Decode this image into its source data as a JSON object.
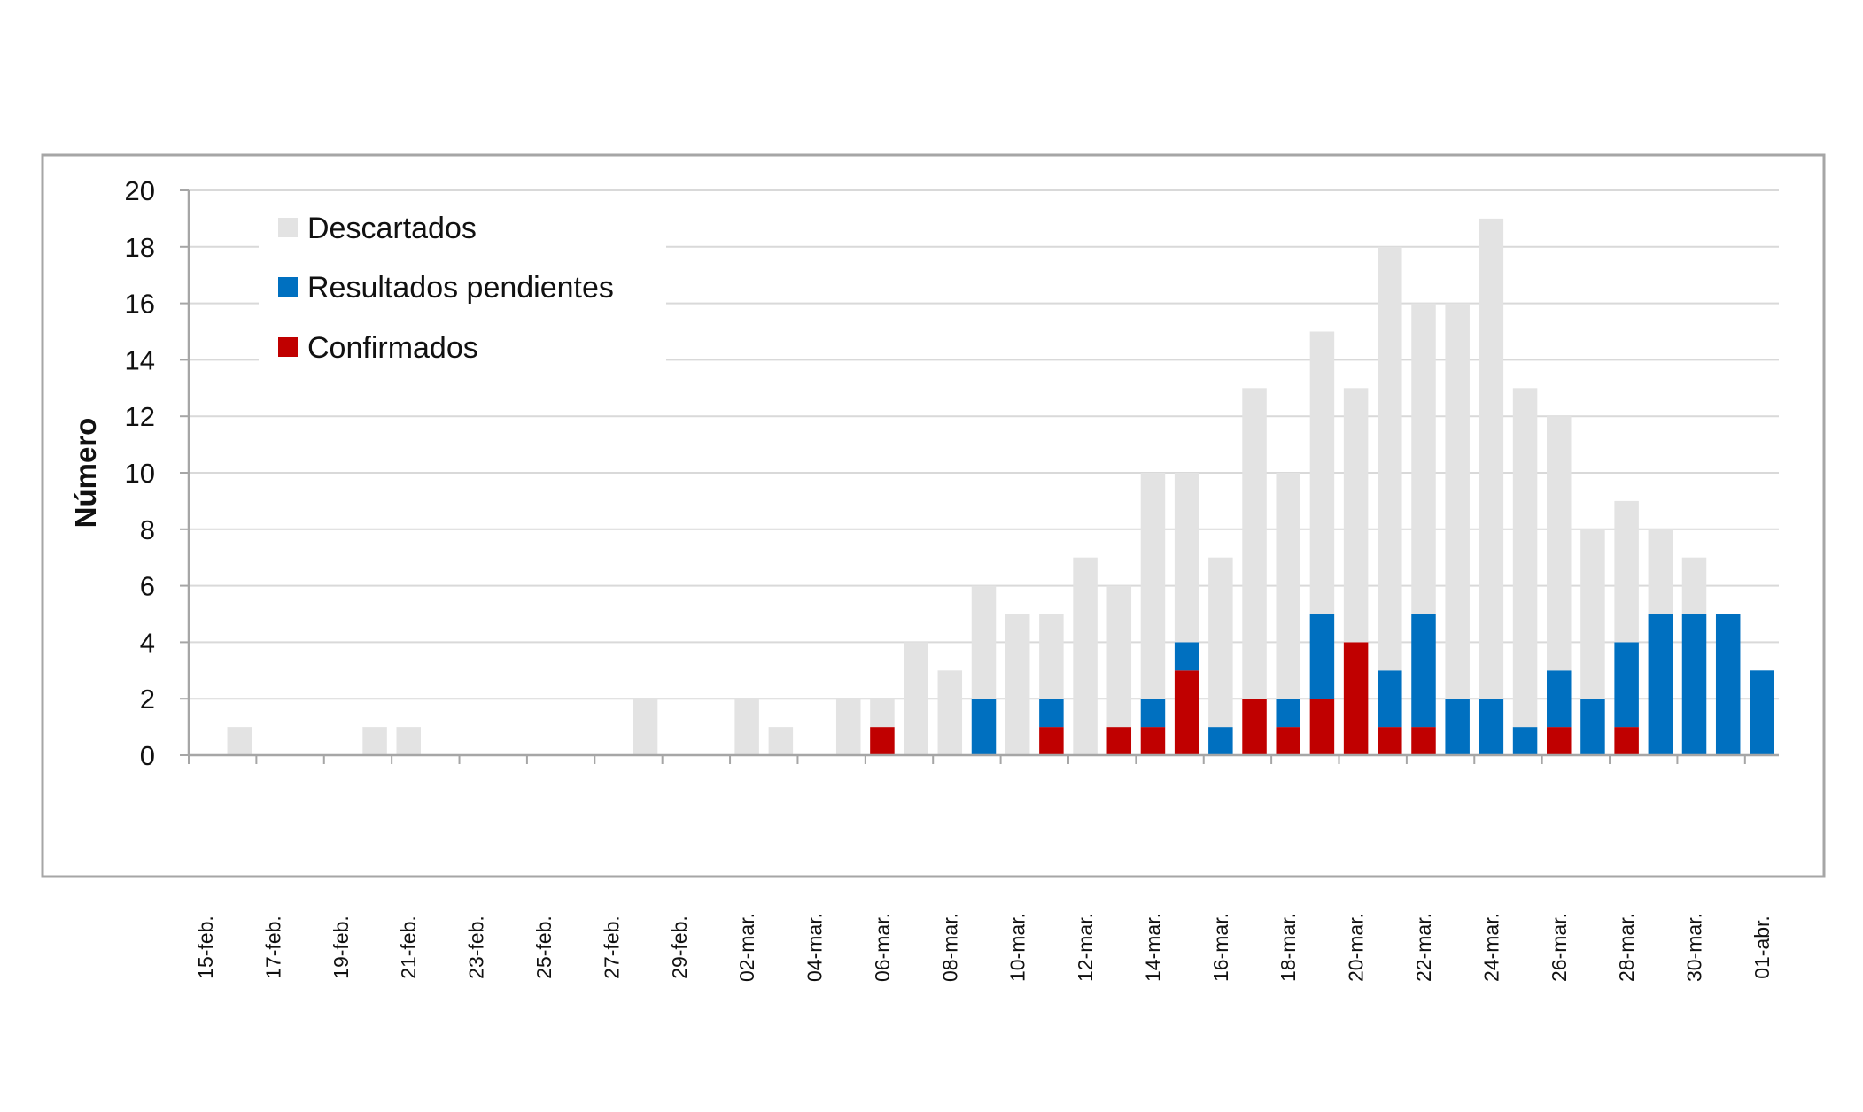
{
  "chart_data": {
    "type": "bar",
    "stacked": true,
    "title": "",
    "xlabel": "",
    "ylabel": "Número",
    "ylim": [
      0,
      20
    ],
    "yticks": [
      0,
      2,
      4,
      6,
      8,
      10,
      12,
      14,
      16,
      18,
      20
    ],
    "grid": true,
    "legend_position": "top-left",
    "x": [
      "15-feb.",
      "16-feb.",
      "17-feb.",
      "18-feb.",
      "19-feb.",
      "20-feb.",
      "21-feb.",
      "22-feb.",
      "23-feb.",
      "24-feb.",
      "25-feb.",
      "26-feb.",
      "27-feb.",
      "28-feb.",
      "29-feb.",
      "01-mar.",
      "02-mar.",
      "03-mar.",
      "04-mar.",
      "05-mar.",
      "06-mar.",
      "07-mar.",
      "08-mar.",
      "09-mar.",
      "10-mar.",
      "11-mar.",
      "12-mar.",
      "13-mar.",
      "14-mar.",
      "15-mar.",
      "16-mar.",
      "17-mar.",
      "18-mar.",
      "19-mar.",
      "20-mar.",
      "21-mar.",
      "22-mar.",
      "23-mar.",
      "24-mar.",
      "25-mar.",
      "26-mar.",
      "27-mar.",
      "28-mar.",
      "29-mar.",
      "30-mar.",
      "31-mar.",
      "01-abr."
    ],
    "xtick_labels": [
      "15-feb.",
      "17-feb.",
      "19-feb.",
      "21-feb.",
      "23-feb.",
      "25-feb.",
      "27-feb.",
      "29-feb.",
      "02-mar.",
      "04-mar.",
      "06-mar.",
      "08-mar.",
      "10-mar.",
      "12-mar.",
      "14-mar.",
      "16-mar.",
      "18-mar.",
      "20-mar.",
      "22-mar.",
      "24-mar.",
      "26-mar.",
      "28-mar.",
      "30-mar.",
      "01-abr."
    ],
    "series": [
      {
        "name": "Confirmados",
        "color": "#c00000",
        "values": [
          0,
          0,
          0,
          0,
          0,
          0,
          0,
          0,
          0,
          0,
          0,
          0,
          0,
          0,
          0,
          0,
          0,
          0,
          0,
          0,
          1,
          0,
          0,
          0,
          0,
          1,
          0,
          1,
          1,
          3,
          0,
          2,
          1,
          2,
          4,
          1,
          1,
          0,
          0,
          0,
          1,
          0,
          1,
          0,
          0,
          0,
          0
        ]
      },
      {
        "name": "Resultados pendientes",
        "color": "#0070c0",
        "values": [
          0,
          0,
          0,
          0,
          0,
          0,
          0,
          0,
          0,
          0,
          0,
          0,
          0,
          0,
          0,
          0,
          0,
          0,
          0,
          0,
          0,
          0,
          0,
          2,
          0,
          1,
          0,
          0,
          1,
          1,
          1,
          0,
          1,
          3,
          0,
          2,
          4,
          2,
          2,
          1,
          2,
          2,
          3,
          5,
          5,
          5,
          3
        ]
      },
      {
        "name": "Descartados",
        "color": "#e3e3e3",
        "values": [
          0,
          1,
          0,
          0,
          0,
          1,
          1,
          0,
          0,
          0,
          0,
          0,
          0,
          2,
          0,
          0,
          2,
          1,
          0,
          2,
          1,
          4,
          3,
          4,
          5,
          3,
          7,
          5,
          8,
          6,
          6,
          11,
          8,
          10,
          9,
          15,
          11,
          14,
          17,
          12,
          9,
          6,
          5,
          3,
          2,
          0,
          0
        ]
      }
    ],
    "legend_order": [
      "Descartados",
      "Resultados pendientes",
      "Confirmados"
    ]
  }
}
